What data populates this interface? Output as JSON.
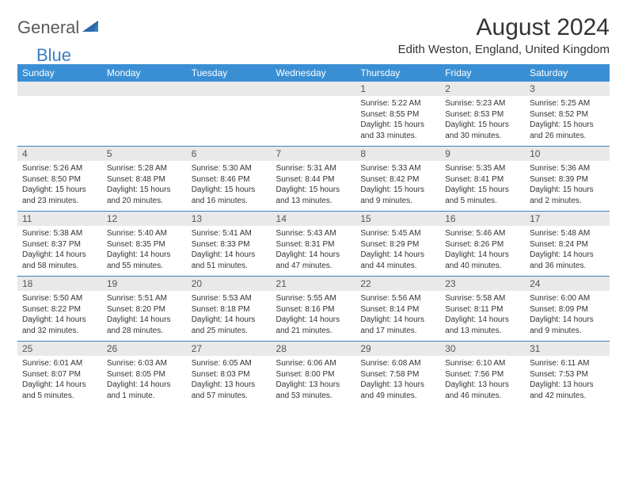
{
  "logo": {
    "text1": "General",
    "text2": "Blue"
  },
  "title": "August 2024",
  "location": "Edith Weston, England, United Kingdom",
  "colors": {
    "header_bg": "#3a8fd4",
    "header_fg": "#ffffff",
    "rule": "#3a7fc4",
    "daynum_bg": "#e9e9e9",
    "logo_gray": "#5a5a5a",
    "logo_blue": "#3a7fc4"
  },
  "weekdays": [
    "Sunday",
    "Monday",
    "Tuesday",
    "Wednesday",
    "Thursday",
    "Friday",
    "Saturday"
  ],
  "weeks": [
    [
      {
        "n": "",
        "l1": "",
        "l2": "",
        "l3": ""
      },
      {
        "n": "",
        "l1": "",
        "l2": "",
        "l3": ""
      },
      {
        "n": "",
        "l1": "",
        "l2": "",
        "l3": ""
      },
      {
        "n": "",
        "l1": "",
        "l2": "",
        "l3": ""
      },
      {
        "n": "1",
        "l1": "Sunrise: 5:22 AM",
        "l2": "Sunset: 8:55 PM",
        "l3": "Daylight: 15 hours and 33 minutes."
      },
      {
        "n": "2",
        "l1": "Sunrise: 5:23 AM",
        "l2": "Sunset: 8:53 PM",
        "l3": "Daylight: 15 hours and 30 minutes."
      },
      {
        "n": "3",
        "l1": "Sunrise: 5:25 AM",
        "l2": "Sunset: 8:52 PM",
        "l3": "Daylight: 15 hours and 26 minutes."
      }
    ],
    [
      {
        "n": "4",
        "l1": "Sunrise: 5:26 AM",
        "l2": "Sunset: 8:50 PM",
        "l3": "Daylight: 15 hours and 23 minutes."
      },
      {
        "n": "5",
        "l1": "Sunrise: 5:28 AM",
        "l2": "Sunset: 8:48 PM",
        "l3": "Daylight: 15 hours and 20 minutes."
      },
      {
        "n": "6",
        "l1": "Sunrise: 5:30 AM",
        "l2": "Sunset: 8:46 PM",
        "l3": "Daylight: 15 hours and 16 minutes."
      },
      {
        "n": "7",
        "l1": "Sunrise: 5:31 AM",
        "l2": "Sunset: 8:44 PM",
        "l3": "Daylight: 15 hours and 13 minutes."
      },
      {
        "n": "8",
        "l1": "Sunrise: 5:33 AM",
        "l2": "Sunset: 8:42 PM",
        "l3": "Daylight: 15 hours and 9 minutes."
      },
      {
        "n": "9",
        "l1": "Sunrise: 5:35 AM",
        "l2": "Sunset: 8:41 PM",
        "l3": "Daylight: 15 hours and 5 minutes."
      },
      {
        "n": "10",
        "l1": "Sunrise: 5:36 AM",
        "l2": "Sunset: 8:39 PM",
        "l3": "Daylight: 15 hours and 2 minutes."
      }
    ],
    [
      {
        "n": "11",
        "l1": "Sunrise: 5:38 AM",
        "l2": "Sunset: 8:37 PM",
        "l3": "Daylight: 14 hours and 58 minutes."
      },
      {
        "n": "12",
        "l1": "Sunrise: 5:40 AM",
        "l2": "Sunset: 8:35 PM",
        "l3": "Daylight: 14 hours and 55 minutes."
      },
      {
        "n": "13",
        "l1": "Sunrise: 5:41 AM",
        "l2": "Sunset: 8:33 PM",
        "l3": "Daylight: 14 hours and 51 minutes."
      },
      {
        "n": "14",
        "l1": "Sunrise: 5:43 AM",
        "l2": "Sunset: 8:31 PM",
        "l3": "Daylight: 14 hours and 47 minutes."
      },
      {
        "n": "15",
        "l1": "Sunrise: 5:45 AM",
        "l2": "Sunset: 8:29 PM",
        "l3": "Daylight: 14 hours and 44 minutes."
      },
      {
        "n": "16",
        "l1": "Sunrise: 5:46 AM",
        "l2": "Sunset: 8:26 PM",
        "l3": "Daylight: 14 hours and 40 minutes."
      },
      {
        "n": "17",
        "l1": "Sunrise: 5:48 AM",
        "l2": "Sunset: 8:24 PM",
        "l3": "Daylight: 14 hours and 36 minutes."
      }
    ],
    [
      {
        "n": "18",
        "l1": "Sunrise: 5:50 AM",
        "l2": "Sunset: 8:22 PM",
        "l3": "Daylight: 14 hours and 32 minutes."
      },
      {
        "n": "19",
        "l1": "Sunrise: 5:51 AM",
        "l2": "Sunset: 8:20 PM",
        "l3": "Daylight: 14 hours and 28 minutes."
      },
      {
        "n": "20",
        "l1": "Sunrise: 5:53 AM",
        "l2": "Sunset: 8:18 PM",
        "l3": "Daylight: 14 hours and 25 minutes."
      },
      {
        "n": "21",
        "l1": "Sunrise: 5:55 AM",
        "l2": "Sunset: 8:16 PM",
        "l3": "Daylight: 14 hours and 21 minutes."
      },
      {
        "n": "22",
        "l1": "Sunrise: 5:56 AM",
        "l2": "Sunset: 8:14 PM",
        "l3": "Daylight: 14 hours and 17 minutes."
      },
      {
        "n": "23",
        "l1": "Sunrise: 5:58 AM",
        "l2": "Sunset: 8:11 PM",
        "l3": "Daylight: 14 hours and 13 minutes."
      },
      {
        "n": "24",
        "l1": "Sunrise: 6:00 AM",
        "l2": "Sunset: 8:09 PM",
        "l3": "Daylight: 14 hours and 9 minutes."
      }
    ],
    [
      {
        "n": "25",
        "l1": "Sunrise: 6:01 AM",
        "l2": "Sunset: 8:07 PM",
        "l3": "Daylight: 14 hours and 5 minutes."
      },
      {
        "n": "26",
        "l1": "Sunrise: 6:03 AM",
        "l2": "Sunset: 8:05 PM",
        "l3": "Daylight: 14 hours and 1 minute."
      },
      {
        "n": "27",
        "l1": "Sunrise: 6:05 AM",
        "l2": "Sunset: 8:03 PM",
        "l3": "Daylight: 13 hours and 57 minutes."
      },
      {
        "n": "28",
        "l1": "Sunrise: 6:06 AM",
        "l2": "Sunset: 8:00 PM",
        "l3": "Daylight: 13 hours and 53 minutes."
      },
      {
        "n": "29",
        "l1": "Sunrise: 6:08 AM",
        "l2": "Sunset: 7:58 PM",
        "l3": "Daylight: 13 hours and 49 minutes."
      },
      {
        "n": "30",
        "l1": "Sunrise: 6:10 AM",
        "l2": "Sunset: 7:56 PM",
        "l3": "Daylight: 13 hours and 46 minutes."
      },
      {
        "n": "31",
        "l1": "Sunrise: 6:11 AM",
        "l2": "Sunset: 7:53 PM",
        "l3": "Daylight: 13 hours and 42 minutes."
      }
    ]
  ]
}
